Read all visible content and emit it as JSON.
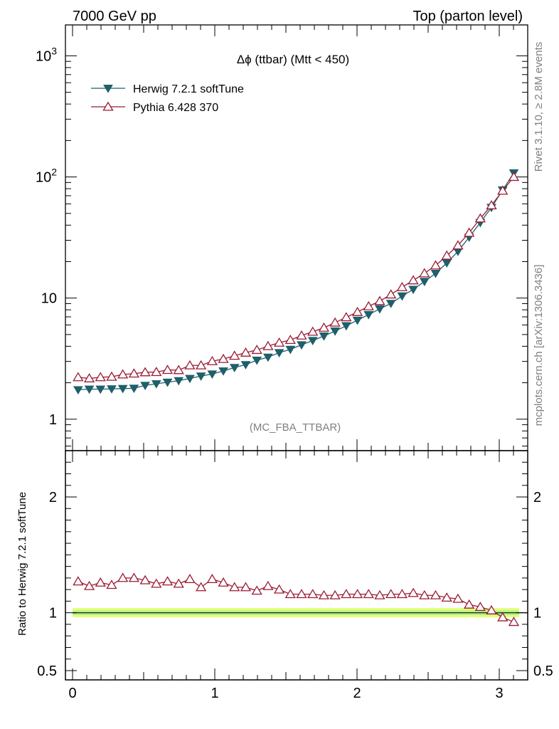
{
  "header": {
    "left": "7000 GeV pp",
    "right": "Top (parton level)"
  },
  "side_labels": {
    "top": "Rivet 3.1.10, ≥ 2.8M events",
    "bottom": "mcplots.cern.ch [arXiv:1306.3436]"
  },
  "analysis_tag": "(MC_FBA_TTBAR)",
  "colors": {
    "herwig": "#1f5f6a",
    "pythia": "#9a1a32",
    "band_outer": "#e6ff7a",
    "band_inner": "#b7ef8a"
  },
  "chart_data": [
    {
      "type": "line",
      "title": "Δϕ (ttbar) (Mtt < 450)",
      "xlabel": "",
      "ylabel": "",
      "yscale": "log",
      "xlim": [
        -0.05,
        3.2
      ],
      "ylim": [
        0.55,
        1800
      ],
      "y_tick_labels": [
        "1",
        "10",
        "10^2",
        "10^3"
      ],
      "x": [
        0.0393,
        0.1178,
        0.1963,
        0.2749,
        0.3534,
        0.432,
        0.5105,
        0.589,
        0.6676,
        0.7461,
        0.8247,
        0.9032,
        0.9817,
        1.0603,
        1.1388,
        1.2174,
        1.2959,
        1.3744,
        1.453,
        1.5315,
        1.6101,
        1.6886,
        1.7671,
        1.8457,
        1.9242,
        2.0028,
        2.0813,
        2.1598,
        2.2384,
        2.3169,
        2.3955,
        2.474,
        2.5525,
        2.6311,
        2.7096,
        2.7882,
        2.8667,
        2.9452,
        3.0238,
        3.1023
      ],
      "legend_position": "top-left",
      "series": [
        {
          "name": "Herwig 7.2.1 softTune",
          "marker": "filled-down-triangle",
          "values": [
            1.75,
            1.77,
            1.77,
            1.78,
            1.79,
            1.8,
            1.9,
            1.96,
            2.02,
            2.08,
            2.17,
            2.27,
            2.36,
            2.5,
            2.67,
            2.82,
            3.07,
            3.25,
            3.54,
            3.77,
            4.11,
            4.46,
            4.86,
            5.34,
            5.9,
            6.56,
            7.3,
            8.14,
            9.03,
            10.4,
            11.8,
            13.7,
            16.0,
            19.5,
            24.3,
            31.8,
            42.0,
            56.0,
            78.0,
            108.0
          ]
        },
        {
          "name": "Pythia 6.428 370",
          "marker": "open-up-triangle",
          "values": [
            2.22,
            2.17,
            2.22,
            2.24,
            2.34,
            2.38,
            2.44,
            2.45,
            2.55,
            2.54,
            2.78,
            2.78,
            3.01,
            3.14,
            3.34,
            3.54,
            3.73,
            4.01,
            4.28,
            4.51,
            4.9,
            5.27,
            5.69,
            6.27,
            6.94,
            7.67,
            8.54,
            9.44,
            10.7,
            12.3,
            14.0,
            16.0,
            18.6,
            22.4,
            27.2,
            34.6,
            45.4,
            58.3,
            77.0,
            100.0
          ]
        }
      ]
    },
    {
      "type": "line",
      "title": "",
      "xlabel": "",
      "ylabel": "Ratio to Herwig 7.2.1 softTune",
      "xlim": [
        -0.05,
        3.2
      ],
      "ylim": [
        0.42,
        2.4
      ],
      "x_tick_labels": [
        "0",
        "1",
        "2",
        "3"
      ],
      "y_tick_labels": [
        "0.5",
        "1",
        "2"
      ],
      "reference_band": [
        0.96,
        1.04
      ],
      "series": [
        {
          "name": "Pythia 6.428 370",
          "marker": "open-up-triangle",
          "values": [
            1.27,
            1.23,
            1.26,
            1.24,
            1.3,
            1.3,
            1.28,
            1.25,
            1.27,
            1.25,
            1.29,
            1.22,
            1.29,
            1.26,
            1.22,
            1.22,
            1.19,
            1.23,
            1.2,
            1.16,
            1.16,
            1.16,
            1.15,
            1.15,
            1.16,
            1.16,
            1.16,
            1.15,
            1.16,
            1.16,
            1.17,
            1.15,
            1.15,
            1.13,
            1.12,
            1.07,
            1.05,
            1.02,
            0.96,
            0.92
          ]
        }
      ]
    }
  ]
}
